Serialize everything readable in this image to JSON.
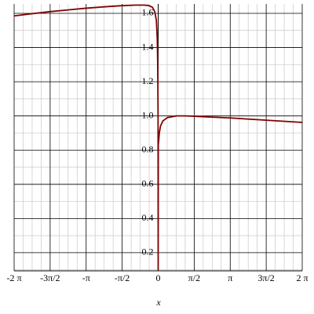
{
  "chart_data": {
    "type": "line",
    "x_label": "x",
    "series": [
      {
        "color": "#800000",
        "x": [
          -6.283,
          -5.5,
          -4.712,
          -3.927,
          -3.142,
          -2.356,
          -1.571,
          -1.0,
          -0.6,
          -0.4,
          -0.25,
          -0.15,
          -0.08,
          -0.04,
          -0.02,
          -0.005,
          0,
          0.005,
          0.02,
          0.05,
          0.1,
          0.2,
          0.4,
          0.8,
          1.2,
          1.571,
          3.142,
          4.712,
          6.283
        ],
        "values": [
          1.585,
          1.598,
          1.61,
          1.62,
          1.63,
          1.638,
          1.645,
          1.648,
          1.648,
          1.645,
          1.635,
          1.61,
          1.56,
          1.45,
          1.3,
          1.0,
          0.1,
          0.83,
          0.85,
          0.9,
          0.94,
          0.97,
          0.99,
          1.0,
          1.0,
          0.998,
          0.988,
          0.975,
          0.962
        ]
      }
    ],
    "xlim": [
      -6.283,
      6.283
    ],
    "ylim": [
      0.094,
      1.655
    ],
    "xticks": [
      {
        "value": -6.283,
        "label": "-2 π"
      },
      {
        "value": -4.712,
        "label": "-3π/2"
      },
      {
        "value": -3.142,
        "label": "-π"
      },
      {
        "value": -1.571,
        "label": "-π/2"
      },
      0,
      {
        "value": 1.571,
        "label": "π/2"
      },
      {
        "value": 3.142,
        "label": "π"
      },
      {
        "value": 4.712,
        "label": "3π/2"
      },
      {
        "value": 6.283,
        "label": "2 π"
      }
    ],
    "yticks": [
      0.2,
      0.4,
      0.6,
      0.8,
      {
        "value": 1,
        "label": "1.0"
      },
      1.2,
      1.4,
      1.6
    ],
    "grid": true
  }
}
